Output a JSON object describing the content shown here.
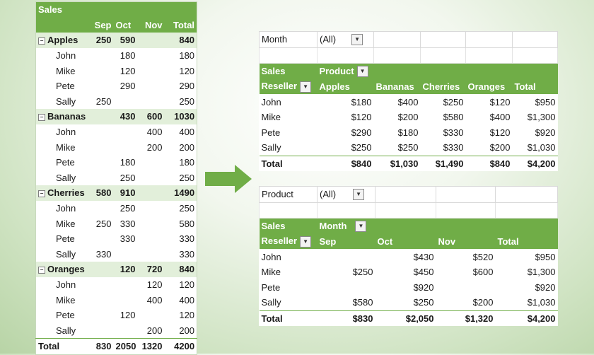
{
  "left_table": {
    "title": "Sales",
    "headers": [
      "Sep",
      "Oct",
      "Nov",
      "Total"
    ],
    "groups": [
      {
        "name": "Apples",
        "values": [
          "250",
          "590",
          "",
          "840"
        ],
        "rows": [
          {
            "name": "John",
            "values": [
              "",
              "180",
              "",
              "180"
            ]
          },
          {
            "name": "Mike",
            "values": [
              "",
              "120",
              "",
              "120"
            ]
          },
          {
            "name": "Pete",
            "values": [
              "",
              "290",
              "",
              "290"
            ]
          },
          {
            "name": "Sally",
            "values": [
              "250",
              "",
              "",
              "250"
            ]
          }
        ]
      },
      {
        "name": "Bananas",
        "values": [
          "",
          "430",
          "600",
          "1030"
        ],
        "rows": [
          {
            "name": "John",
            "values": [
              "",
              "",
              "400",
              "400"
            ]
          },
          {
            "name": "Mike",
            "values": [
              "",
              "",
              "200",
              "200"
            ]
          },
          {
            "name": "Pete",
            "values": [
              "",
              "180",
              "",
              "180"
            ]
          },
          {
            "name": "Sally",
            "values": [
              "",
              "250",
              "",
              "250"
            ]
          }
        ]
      },
      {
        "name": "Cherries",
        "values": [
          "580",
          "910",
          "",
          "1490"
        ],
        "rows": [
          {
            "name": "John",
            "values": [
              "",
              "250",
              "",
              "250"
            ]
          },
          {
            "name": "Mike",
            "values": [
              "250",
              "330",
              "",
              "580"
            ]
          },
          {
            "name": "Pete",
            "values": [
              "",
              "330",
              "",
              "330"
            ]
          },
          {
            "name": "Sally",
            "values": [
              "330",
              "",
              "",
              "330"
            ]
          }
        ]
      },
      {
        "name": "Oranges",
        "values": [
          "",
          "120",
          "720",
          "840"
        ],
        "rows": [
          {
            "name": "John",
            "values": [
              "",
              "",
              "120",
              "120"
            ]
          },
          {
            "name": "Mike",
            "values": [
              "",
              "",
              "400",
              "400"
            ]
          },
          {
            "name": "Pete",
            "values": [
              "",
              "120",
              "",
              "120"
            ]
          },
          {
            "name": "Sally",
            "values": [
              "",
              "",
              "200",
              "200"
            ]
          }
        ]
      }
    ],
    "total": {
      "label": "Total",
      "values": [
        "830",
        "2050",
        "1320",
        "4200"
      ]
    }
  },
  "pivot1": {
    "filter_label": "Month",
    "filter_value": "(All)",
    "values_label": "Sales",
    "col_field": "Product",
    "row_field": "Reseller",
    "columns": [
      "Apples",
      "Bananas",
      "Cherries",
      "Oranges",
      "Total"
    ],
    "rows": [
      {
        "name": "John",
        "values": [
          "$180",
          "$400",
          "$250",
          "$120",
          "$950"
        ]
      },
      {
        "name": "Mike",
        "values": [
          "$120",
          "$200",
          "$580",
          "$400",
          "$1,300"
        ]
      },
      {
        "name": "Pete",
        "values": [
          "$290",
          "$180",
          "$330",
          "$120",
          "$920"
        ]
      },
      {
        "name": "Sally",
        "values": [
          "$250",
          "$250",
          "$330",
          "$200",
          "$1,030"
        ]
      }
    ],
    "total": {
      "label": "Total",
      "values": [
        "$840",
        "$1,030",
        "$1,490",
        "$840",
        "$4,200"
      ]
    }
  },
  "pivot2": {
    "filter_label": "Product",
    "filter_value": "(All)",
    "values_label": "Sales",
    "col_field": "Month",
    "row_field": "Reseller",
    "columns": [
      "Sep",
      "Oct",
      "Nov",
      "Total"
    ],
    "rows": [
      {
        "name": "John",
        "values": [
          "",
          "$430",
          "$520",
          "$950"
        ]
      },
      {
        "name": "Mike",
        "values": [
          "$250",
          "$450",
          "$600",
          "$1,300"
        ]
      },
      {
        "name": "Pete",
        "values": [
          "",
          "$920",
          "",
          "$920"
        ]
      },
      {
        "name": "Sally",
        "values": [
          "$580",
          "$250",
          "$200",
          "$1,030"
        ]
      }
    ],
    "total": {
      "label": "Total",
      "values": [
        "$830",
        "$2,050",
        "$1,320",
        "$4,200"
      ]
    }
  },
  "icons": {
    "collapse": "minus-box-icon",
    "dropdown": "dropdown-arrow-icon",
    "arrow": "right-arrow-icon"
  },
  "colors": {
    "header_green": "#70ad47",
    "group_fill": "#e2efda"
  }
}
